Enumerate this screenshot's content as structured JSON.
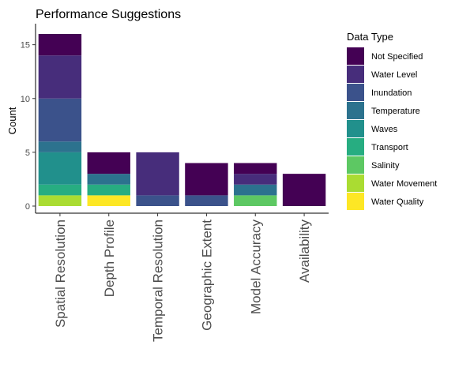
{
  "chart_data": {
    "type": "bar",
    "stacked": true,
    "title": "Performance Suggestions",
    "xlabel": "",
    "ylabel": "Count",
    "ylim": [
      0,
      16.8
    ],
    "yticks": [
      0,
      5,
      10,
      15
    ],
    "grid": false,
    "legend": {
      "title": "Data Type",
      "position": "right"
    },
    "categories": [
      "Spatial Resolution",
      "Depth Profile",
      "Temporal Resolution",
      "Geographic Extent",
      "Model Accuracy",
      "Availability"
    ],
    "series": [
      {
        "name": "Not Specified",
        "color": "#440154",
        "values": [
          2,
          2,
          0,
          3,
          1,
          3
        ]
      },
      {
        "name": "Water Level",
        "color": "#472D7B",
        "values": [
          4,
          0,
          4,
          0,
          1,
          0
        ]
      },
      {
        "name": "Inundation",
        "color": "#3B528B",
        "values": [
          4,
          0,
          1,
          1,
          0,
          0
        ]
      },
      {
        "name": "Temperature",
        "color": "#2C728E",
        "values": [
          1,
          1,
          0,
          0,
          1,
          0
        ]
      },
      {
        "name": "Waves",
        "color": "#21908C",
        "values": [
          3,
          0,
          0,
          0,
          0,
          0
        ]
      },
      {
        "name": "Transport",
        "color": "#27AD81",
        "values": [
          1,
          1,
          0,
          0,
          0,
          0
        ]
      },
      {
        "name": "Salinity",
        "color": "#5DC863",
        "values": [
          0,
          0,
          0,
          0,
          1,
          0
        ]
      },
      {
        "name": "Water Movement",
        "color": "#AADC32",
        "values": [
          1,
          0,
          0,
          0,
          0,
          0
        ]
      },
      {
        "name": "Water Quality",
        "color": "#FDE725",
        "values": [
          0,
          1,
          0,
          0,
          0,
          0
        ]
      }
    ]
  }
}
